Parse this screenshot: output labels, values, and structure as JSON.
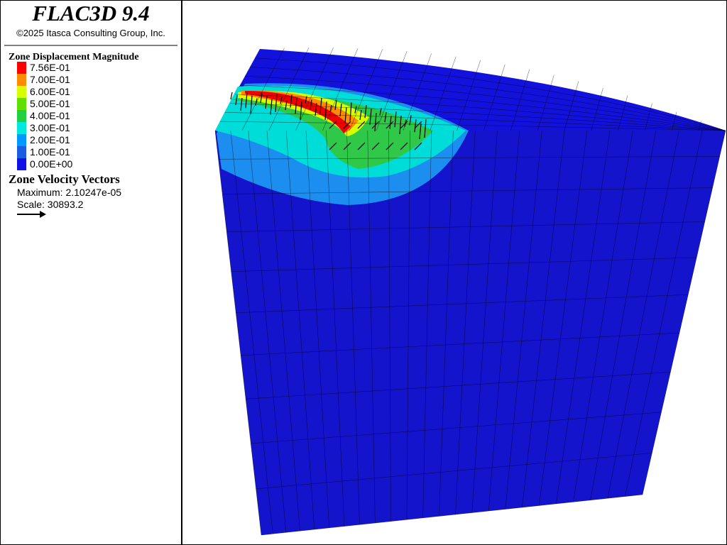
{
  "header": {
    "title": "FLAC3D 9.4",
    "copyright": "©2025 Itasca Consulting Group, Inc."
  },
  "legend": {
    "title": "Zone Displacement Magnitude",
    "items": [
      {
        "label": "7.56E-01",
        "color": "#ff0000"
      },
      {
        "label": "7.00E-01",
        "color": "#ff8c00"
      },
      {
        "label": "6.00E-01",
        "color": "#d8ff00"
      },
      {
        "label": "5.00E-01",
        "color": "#60e000"
      },
      {
        "label": "4.00E-01",
        "color": "#20d040"
      },
      {
        "label": "3.00E-01",
        "color": "#00e8e0"
      },
      {
        "label": "2.00E-01",
        "color": "#0098ff"
      },
      {
        "label": "1.00E-01",
        "color": "#1c5ce0"
      },
      {
        "label": "0.00E+00",
        "color": "#1010e8"
      }
    ]
  },
  "vectors": {
    "title": "Zone Velocity Vectors",
    "maximum": "Maximum: 2.10247e-05",
    "scale": "Scale: 30893.2"
  }
}
